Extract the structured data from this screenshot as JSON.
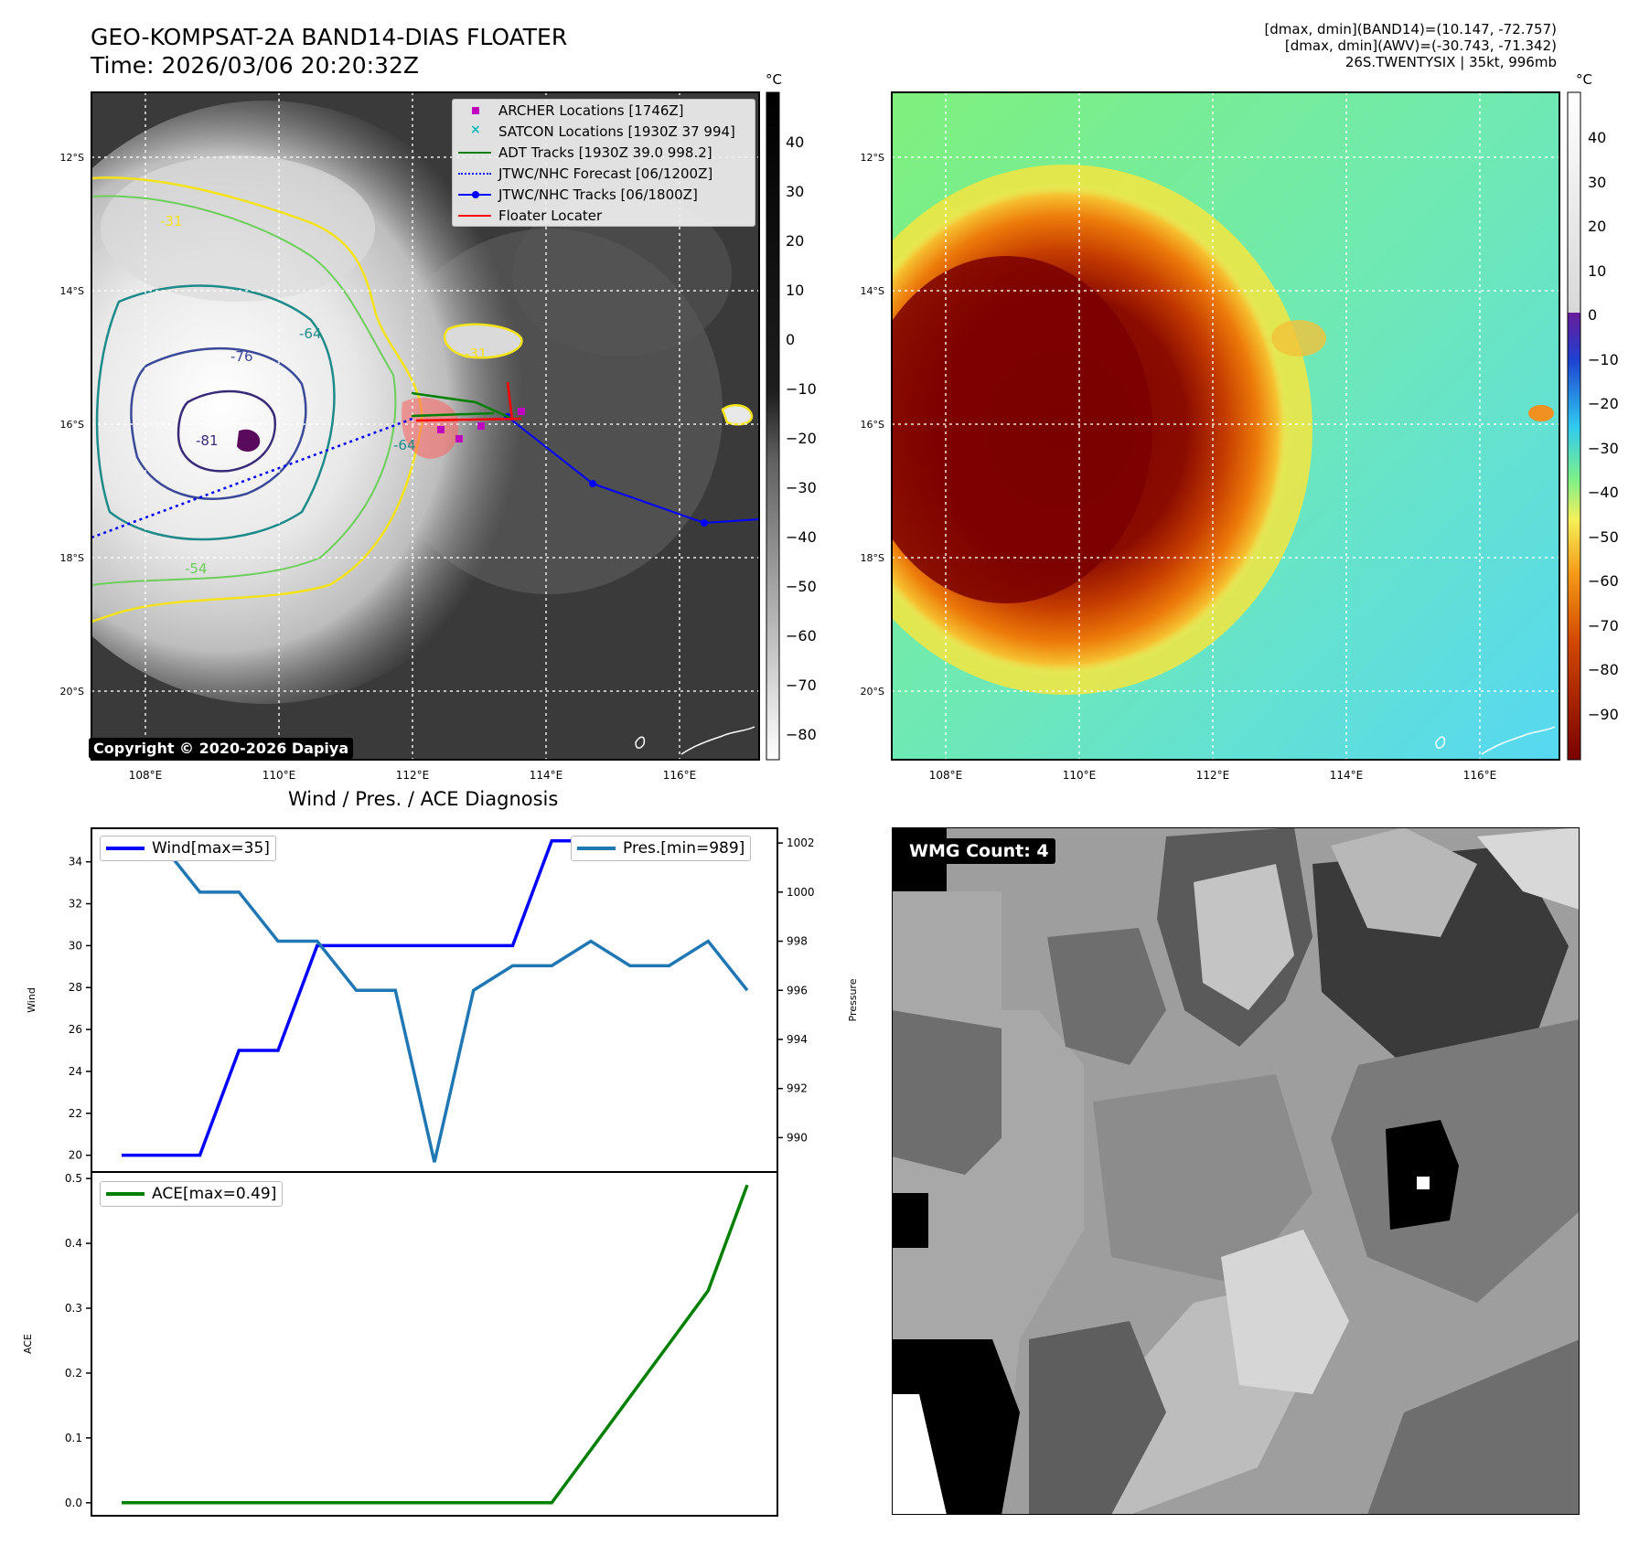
{
  "header": {
    "title_line1": "GEO-KOMPSAT-2A BAND14-DIAS FLOATER",
    "title_line2": "Time: 2026/03/06 20:20:32Z",
    "info_line1": "[dmax, dmin](BAND14)=(10.147, -72.757)",
    "info_line2": "[dmax, dmin](AWV)=(-30.743, -71.342)",
    "info_line3": "26S.TWENTYSIX | 35kt, 996mb"
  },
  "ir_map": {
    "lat_labels": [
      "12°S",
      "14°S",
      "16°S",
      "18°S",
      "20°S"
    ],
    "lon_labels": [
      "108°E",
      "110°E",
      "112°E",
      "114°E",
      "116°E"
    ],
    "contour_labels": [
      "-31",
      "-76",
      "-64",
      "-81",
      "-64",
      "-54",
      "-31"
    ],
    "colorbar_unit": "°C",
    "colorbar_ticks": [
      "40",
      "30",
      "20",
      "10",
      "0",
      "−10",
      "−20",
      "−30",
      "−40",
      "−50",
      "−60",
      "−70",
      "−80"
    ],
    "copyright": "Copyright © 2020-2026 Dapiya",
    "legend": [
      {
        "label": "ARCHER Locations [1746Z]",
        "color": "#c000c0",
        "marker": "square"
      },
      {
        "label": "SATCON Locations [1930Z 37 994]",
        "color": "#00b8b8",
        "marker": "x"
      },
      {
        "label": "ADT Tracks [1930Z 39.0 998.2]",
        "color": "#008000",
        "marker": "line"
      },
      {
        "label": "JTWC/NHC Forecast [06/1200Z]",
        "color": "#0000ff",
        "marker": "dotted"
      },
      {
        "label": "JTWC/NHC Tracks [06/1800Z]",
        "color": "#0000ff",
        "marker": "line-dot"
      },
      {
        "label": "Floater Locater",
        "color": "#ff0000",
        "marker": "line"
      }
    ]
  },
  "awv_map": {
    "lat_labels": [
      "12°S",
      "14°S",
      "16°S",
      "18°S",
      "20°S"
    ],
    "lon_labels": [
      "108°E",
      "110°E",
      "112°E",
      "114°E",
      "116°E"
    ],
    "colorbar_unit": "°C",
    "colorbar_ticks": [
      "40",
      "30",
      "20",
      "10",
      "0",
      "−10",
      "−20",
      "−30",
      "−40",
      "−50",
      "−60",
      "−70",
      "−80",
      "−90"
    ]
  },
  "chart_data": [
    {
      "type": "line",
      "title": "Wind / Pres. / ACE Diagnosis",
      "x": [
        0,
        1,
        2,
        3,
        4,
        5,
        6,
        7,
        8,
        9,
        10,
        11,
        12,
        13,
        14,
        15,
        16
      ],
      "ylabel": "Wind",
      "ylim": [
        19.2,
        35.6
      ],
      "yticks": [
        20,
        22,
        24,
        26,
        28,
        30,
        32,
        34
      ],
      "series": [
        {
          "name": "Wind[max=35]",
          "color": "#0000ff",
          "values": [
            20,
            20,
            20,
            25,
            25,
            30,
            30,
            30,
            30,
            30,
            30,
            35,
            35,
            35,
            35,
            35,
            35
          ]
        }
      ],
      "y2label": "Pressure",
      "y2lim": [
        988.6,
        1002.6
      ],
      "y2ticks": [
        990,
        992,
        994,
        996,
        998,
        1000,
        1002
      ],
      "series2": [
        {
          "name": "Pres.[min=989]",
          "color": "#1f77b4",
          "values": [
            1002,
            1002,
            1000,
            1000,
            998,
            998,
            996,
            996,
            989,
            996,
            997,
            997,
            998,
            997,
            997,
            998,
            996
          ]
        }
      ]
    },
    {
      "type": "line",
      "x": [
        0,
        1,
        2,
        3,
        4,
        5,
        6,
        7,
        8,
        9,
        10,
        11,
        12,
        13,
        14,
        15,
        16
      ],
      "ylabel": "ACE",
      "ylim": [
        -0.02,
        0.51
      ],
      "yticks": [
        0.0,
        0.1,
        0.2,
        0.3,
        0.4,
        0.5
      ],
      "series": [
        {
          "name": "ACE[max=0.49]",
          "color": "#008000",
          "values": [
            0,
            0,
            0,
            0,
            0,
            0,
            0,
            0,
            0,
            0,
            0,
            0,
            0.0816,
            0.1633,
            0.245,
            0.327,
            0.49
          ]
        }
      ]
    }
  ],
  "wmg": {
    "label": "WMG Count: 4"
  }
}
